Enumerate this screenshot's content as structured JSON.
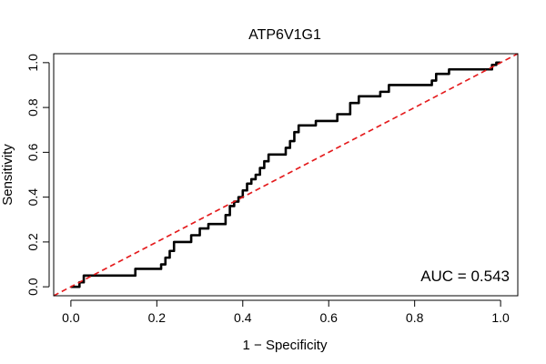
{
  "chart_data": {
    "type": "line",
    "title": "ATP6V1G1",
    "xlabel": "1 − Specificity",
    "ylabel": "Sensitivity",
    "xlim": [
      -0.04,
      1.04
    ],
    "ylim": [
      -0.04,
      1.04
    ],
    "x_ticks": [
      "0.0",
      "0.2",
      "0.4",
      "0.6",
      "0.8",
      "1.0"
    ],
    "y_ticks": [
      "0.0",
      "0.2",
      "0.4",
      "0.6",
      "0.8",
      "1.0"
    ],
    "annotation": "AUC = 0.543",
    "series": [
      {
        "style": "step",
        "color": "#000000",
        "points": [
          [
            0.0,
            0.0
          ],
          [
            0.02,
            0.0
          ],
          [
            0.02,
            0.02
          ],
          [
            0.03,
            0.02
          ],
          [
            0.03,
            0.05
          ],
          [
            0.15,
            0.05
          ],
          [
            0.15,
            0.08
          ],
          [
            0.21,
            0.08
          ],
          [
            0.21,
            0.1
          ],
          [
            0.22,
            0.1
          ],
          [
            0.22,
            0.13
          ],
          [
            0.23,
            0.13
          ],
          [
            0.23,
            0.16
          ],
          [
            0.24,
            0.16
          ],
          [
            0.24,
            0.2
          ],
          [
            0.28,
            0.2
          ],
          [
            0.28,
            0.23
          ],
          [
            0.3,
            0.23
          ],
          [
            0.3,
            0.26
          ],
          [
            0.32,
            0.26
          ],
          [
            0.32,
            0.28
          ],
          [
            0.36,
            0.28
          ],
          [
            0.36,
            0.32
          ],
          [
            0.37,
            0.32
          ],
          [
            0.37,
            0.36
          ],
          [
            0.38,
            0.36
          ],
          [
            0.38,
            0.38
          ],
          [
            0.39,
            0.38
          ],
          [
            0.39,
            0.4
          ],
          [
            0.4,
            0.4
          ],
          [
            0.4,
            0.43
          ],
          [
            0.41,
            0.43
          ],
          [
            0.41,
            0.46
          ],
          [
            0.42,
            0.46
          ],
          [
            0.42,
            0.48
          ],
          [
            0.43,
            0.48
          ],
          [
            0.43,
            0.5
          ],
          [
            0.44,
            0.5
          ],
          [
            0.44,
            0.53
          ],
          [
            0.45,
            0.53
          ],
          [
            0.45,
            0.56
          ],
          [
            0.46,
            0.56
          ],
          [
            0.46,
            0.59
          ],
          [
            0.5,
            0.59
          ],
          [
            0.5,
            0.62
          ],
          [
            0.51,
            0.62
          ],
          [
            0.51,
            0.65
          ],
          [
            0.52,
            0.65
          ],
          [
            0.52,
            0.69
          ],
          [
            0.53,
            0.69
          ],
          [
            0.53,
            0.72
          ],
          [
            0.57,
            0.72
          ],
          [
            0.57,
            0.74
          ],
          [
            0.62,
            0.74
          ],
          [
            0.62,
            0.77
          ],
          [
            0.65,
            0.77
          ],
          [
            0.65,
            0.82
          ],
          [
            0.67,
            0.82
          ],
          [
            0.67,
            0.85
          ],
          [
            0.72,
            0.85
          ],
          [
            0.72,
            0.87
          ],
          [
            0.74,
            0.87
          ],
          [
            0.74,
            0.9
          ],
          [
            0.84,
            0.9
          ],
          [
            0.84,
            0.92
          ],
          [
            0.85,
            0.92
          ],
          [
            0.85,
            0.95
          ],
          [
            0.88,
            0.95
          ],
          [
            0.88,
            0.97
          ],
          [
            0.98,
            0.97
          ],
          [
            0.98,
            0.99
          ],
          [
            0.99,
            0.99
          ],
          [
            0.99,
            1.0
          ],
          [
            1.0,
            1.0
          ]
        ]
      },
      {
        "style": "dashed",
        "color": "#e41a1c",
        "points": [
          [
            -0.04,
            -0.04
          ],
          [
            1.04,
            1.04
          ]
        ]
      }
    ]
  }
}
